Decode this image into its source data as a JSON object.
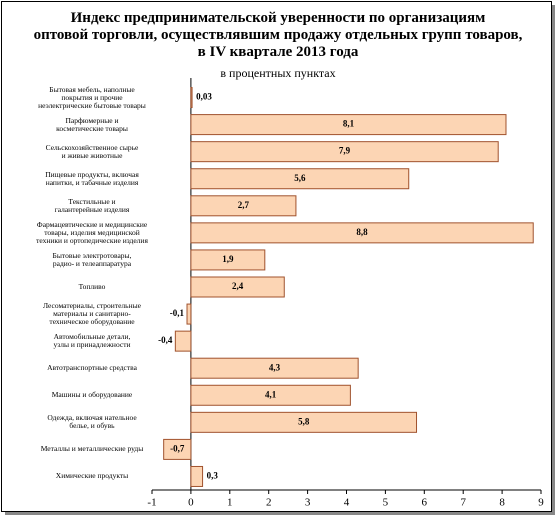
{
  "chart_data": {
    "type": "bar",
    "orientation": "horizontal",
    "title": "Индекс предпринимательской уверенности по организациям\nоптовой торговли, осуществлявшим продажу отдельных групп товаров,\nв IV квартале 2013 года",
    "subtitle": "в процентных пунктах",
    "categories": [
      "Бытовая мебель, наполные\nпокрытия и прочие\nнеэлектрические бытовые товары",
      "Парфюмерные и\nкосметические товары",
      "Сельскохозяйственное сырье\nи живые животные",
      "Пищевые продукты, включая\nнапитки, и табачные изделия",
      "Текстильные и\nгалантерейные изделия",
      "Фармацевтические и медицинские\nтовары, изделия медицинской\nтехники и ортопедические изделия",
      "Бытовые электротовары,\nрадио- и телеаппаратура",
      "Топливо",
      "Лесоматериалы, строительные\nматериалы и санитарно-\nтехническое оборудование",
      "Автомобильные детали,\nузлы и принадлежности",
      "Автотранспортные средства",
      "Машины и оборудование",
      "Одежда, включая нательное\nбелье, и обувь",
      "Металлы и металлические руды",
      "Химические продукты"
    ],
    "values": [
      0.03,
      8.1,
      7.9,
      5.6,
      2.7,
      8.8,
      1.9,
      2.4,
      -0.1,
      -0.4,
      4.3,
      4.1,
      5.8,
      -0.7,
      0.3
    ],
    "value_labels": [
      "0,03",
      "8,1",
      "7,9",
      "5,6",
      "2,7",
      "8,8",
      "1,9",
      "2,4",
      "-0,1",
      "-0,4",
      "4,3",
      "4,1",
      "5,8",
      "-0,7",
      "0,3"
    ],
    "color": "#fcd5b4",
    "edge_color": "#a0522d",
    "xlim": [
      -1,
      9
    ],
    "xticks": [
      -1,
      0,
      1,
      2,
      3,
      4,
      5,
      6,
      7,
      8,
      9
    ]
  }
}
